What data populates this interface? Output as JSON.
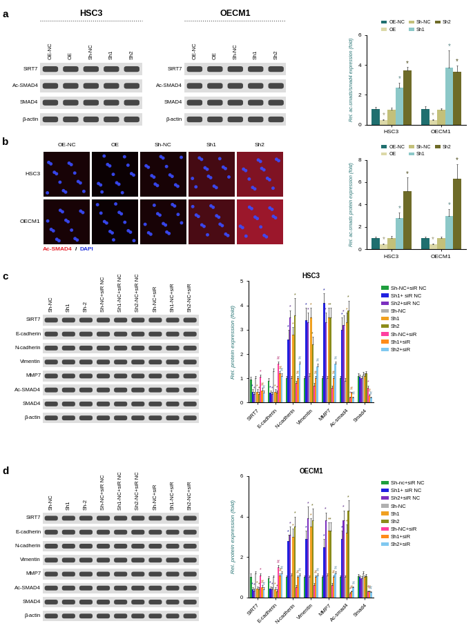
{
  "panel_labels": [
    "a",
    "b",
    "c",
    "d"
  ],
  "blots": [
    {
      "title": "HSC3",
      "lanes": [
        "OE-NC",
        "OE",
        "Sh-NC",
        "Sh1",
        "Sh2"
      ],
      "rows": [
        "SIRT7",
        "Ac-SMAD4",
        "SMAD4",
        "β-actin"
      ]
    },
    {
      "title": "OECM1",
      "lanes": [
        "OE-NC",
        "OE",
        "Sh-NC",
        "Sh1",
        "Sh2"
      ],
      "rows": [
        "SIRT7",
        "Ac-SMAD4",
        "SMAD4",
        "β-actin"
      ]
    },
    {
      "lanes": [
        "Sh-NC",
        "Sh1",
        "Sh-2",
        "Sh-NC+siR NC",
        "Sh1-NC+siR NC",
        "Sh2-NC+siR NC",
        "Sh-NC+siR",
        "Sh1-NC+siR",
        "Sh2-NC+siR"
      ],
      "rows": [
        "SIRT7",
        "E-cadherin",
        "N-cadherin",
        "Vimentin",
        "MMP7",
        "Ac-SMAD4",
        "SMAD4",
        "β-actin"
      ]
    },
    {
      "lanes": [
        "Sh-NC",
        "Sh1",
        "Sh-2",
        "Sh-NC+siR NC",
        "Sh1-NC+siR NC",
        "Sh2-NC+siR NC",
        "Sh-NC+siR",
        "Sh1-NC+siR",
        "Sh2-NC+siR"
      ],
      "rows": [
        "SIRT7",
        "E-cadherin",
        "N-cadherin",
        "Vimentin",
        "MMP7",
        "Ac-SMAD4",
        "SMAD4",
        "β-actin"
      ]
    }
  ],
  "images": {
    "rows": [
      "HSC3",
      "OECM1"
    ],
    "columns": [
      "OE-NC",
      "OE",
      "Sh-NC",
      "Sh1",
      "Sh2"
    ],
    "caption": [
      {
        "text": "Ac-SMAD4",
        "color": "#e8202a"
      },
      {
        "text": "/",
        "color": "#000000"
      },
      {
        "text": "DAPI",
        "color": "#2030e0"
      }
    ]
  },
  "chart_data": [
    {
      "type": "bar",
      "y_label": "Rel. ac-smads/smad4 expression (fold)",
      "categories": [
        "HSC3",
        "OECM1"
      ],
      "ylim": [
        0,
        6
      ],
      "yticks": [
        0,
        2,
        4,
        6
      ],
      "legend": "top",
      "series": [
        {
          "name": "OE-NC",
          "color": "#1f6f6f",
          "values": [
            1.05,
            1.05
          ],
          "errors": [
            0.15,
            0.2
          ],
          "marks": [
            null,
            null
          ]
        },
        {
          "name": "OE",
          "color": "#dcd9a8",
          "values": [
            0.3,
            0.3
          ],
          "errors": [
            0.05,
            0.05
          ],
          "marks": [
            "*",
            "*"
          ]
        },
        {
          "name": "Sh-NC",
          "color": "#c3c07a",
          "values": [
            1.0,
            1.0
          ],
          "errors": [
            0.15,
            0.1
          ],
          "marks": [
            null,
            null
          ]
        },
        {
          "name": "Sh1",
          "color": "#8cc8c8",
          "values": [
            2.5,
            3.8
          ],
          "errors": [
            0.3,
            1.2
          ],
          "marks": [
            "*",
            "*"
          ]
        },
        {
          "name": "Sh2",
          "color": "#6e6b28",
          "values": [
            3.65,
            3.55
          ],
          "errors": [
            0.2,
            0.4
          ],
          "marks": [
            "*",
            "*"
          ]
        }
      ]
    },
    {
      "type": "bar",
      "y_label": "Rel. ac-smads protein expression (fold)",
      "categories": [
        "HSC3",
        "OECM1"
      ],
      "ylim": [
        0,
        8
      ],
      "yticks": [
        0,
        2,
        4,
        6,
        8
      ],
      "legend": "top",
      "series": [
        {
          "name": "OE-NC",
          "color": "#1f6f6f",
          "values": [
            1.0,
            1.0
          ],
          "errors": [
            0.1,
            0.1
          ],
          "marks": [
            null,
            null
          ]
        },
        {
          "name": "OE",
          "color": "#dcd9a8",
          "values": [
            0.45,
            0.45
          ],
          "errors": [
            0.05,
            0.05
          ],
          "marks": [
            "*",
            "*"
          ]
        },
        {
          "name": "Sh-NC",
          "color": "#c3c07a",
          "values": [
            1.0,
            1.0
          ],
          "errors": [
            0.2,
            0.1
          ],
          "marks": [
            null,
            null
          ]
        },
        {
          "name": "Sh1",
          "color": "#8cc8c8",
          "values": [
            2.8,
            3.0
          ],
          "errors": [
            0.5,
            0.6
          ],
          "marks": [
            "*",
            "*"
          ]
        },
        {
          "name": "Sh2",
          "color": "#6e6b28",
          "values": [
            5.2,
            6.3
          ],
          "errors": [
            1.2,
            1.3
          ],
          "marks": [
            "*",
            "*"
          ]
        }
      ]
    },
    {
      "type": "bar",
      "title": "HSC3",
      "y_label": "Rel. protein expression (fold)",
      "categories": [
        "SIRT7",
        "E-cadherin",
        "N-cadherin",
        "Vimentin",
        "MMP7",
        "Ac-smad4",
        "Smad4"
      ],
      "ylim": [
        0,
        5
      ],
      "yticks": [
        0,
        1,
        2,
        3,
        4,
        5
      ],
      "legend": "right",
      "series": [
        {
          "name": "Sh-NC+siR NC",
          "color": "#1e9e3e",
          "values": [
            0.95,
            0.9,
            1.0,
            1.0,
            1.0,
            1.0,
            1.1
          ],
          "errors": [
            0.1,
            0.1,
            0.1,
            0.1,
            0.1,
            0.1,
            0.1
          ],
          "marks": [
            null,
            null,
            null,
            null,
            null,
            null,
            null
          ]
        },
        {
          "name": "Sh1+ siR NC",
          "color": "#2020e0",
          "values": [
            0.45,
            0.4,
            2.6,
            3.4,
            4.1,
            3.0,
            1.05
          ],
          "errors": [
            0.1,
            0.1,
            0.4,
            0.5,
            0.4,
            0.5,
            0.1
          ],
          "marks": [
            "*",
            "*",
            "*",
            "*",
            "*",
            "*",
            null
          ]
        },
        {
          "name": "Sh2+siR NC",
          "color": "#7b2fbf",
          "values": [
            0.35,
            0.35,
            3.5,
            3.3,
            3.3,
            3.2,
            1.0
          ],
          "errors": [
            0.1,
            0.1,
            0.3,
            0.4,
            0.4,
            0.4,
            0.1
          ],
          "marks": [
            "*",
            "*",
            "*",
            "*",
            "*",
            "*",
            null
          ]
        },
        {
          "name": "Sh-NC",
          "color": "#b0b0b0",
          "values": [
            1.0,
            1.3,
            1.0,
            1.1,
            1.0,
            0.9,
            1.15
          ],
          "errors": [
            0.1,
            0.1,
            0.1,
            0.1,
            0.1,
            0.1,
            0.1
          ],
          "marks": [
            null,
            null,
            null,
            null,
            null,
            null,
            null
          ]
        },
        {
          "name": "Sh1",
          "color": "#f0a020",
          "values": [
            0.45,
            0.45,
            2.8,
            3.5,
            3.5,
            3.3,
            1.1
          ],
          "errors": [
            0.1,
            0.1,
            0.3,
            0.4,
            0.4,
            0.4,
            0.1
          ],
          "marks": [
            "*",
            "*",
            "*",
            "*",
            "*",
            "*",
            null
          ]
        },
        {
          "name": "Sh2",
          "color": "#8c8c1a",
          "values": [
            0.35,
            0.4,
            3.6,
            2.4,
            3.5,
            3.8,
            1.2
          ],
          "errors": [
            0.1,
            0.1,
            0.7,
            0.3,
            0.4,
            0.4,
            0.1
          ],
          "marks": [
            "*",
            "*",
            "*",
            "*",
            "*",
            "*",
            null
          ]
        },
        {
          "name": "Sh-NC+siR",
          "color": "#ff3fa0",
          "values": [
            1.05,
            1.6,
            0.8,
            0.7,
            0.6,
            0.2,
            0.6
          ],
          "errors": [
            0.1,
            0.1,
            0.1,
            0.1,
            0.1,
            0.05,
            0.1
          ],
          "marks": [
            "*",
            "#",
            null,
            null,
            null,
            "*",
            "*"
          ]
        },
        {
          "name": "Sh1+siR",
          "color": "#ff8c1a",
          "values": [
            0.5,
            1.2,
            1.0,
            1.0,
            1.0,
            0.4,
            0.3
          ],
          "errors": [
            0.1,
            0.1,
            0.1,
            0.1,
            0.1,
            0.05,
            0.05
          ],
          "marks": [
            "#",
            "#",
            "#",
            "#",
            "#",
            "#",
            "#"
          ]
        },
        {
          "name": "Sh2+siR",
          "color": "#80c8f0",
          "values": [
            0.4,
            1.1,
            1.6,
            1.5,
            1.6,
            0.2,
            0.2
          ],
          "errors": [
            0.1,
            0.1,
            0.1,
            0.1,
            0.1,
            0.05,
            0.05
          ],
          "marks": [
            "#",
            "#",
            "#",
            "#",
            "#",
            "#",
            "#"
          ]
        }
      ]
    },
    {
      "type": "bar",
      "title": "OECM1",
      "y_label": "Rel. protein expression (fold)",
      "categories": [
        "SIRT7",
        "E-cadherin",
        "N-cadherin",
        "Vimentin",
        "MMP7",
        "Ac-smad4",
        "Smad4"
      ],
      "ylim": [
        0,
        6
      ],
      "yticks": [
        0,
        2,
        4,
        6
      ],
      "legend": "right",
      "series": [
        {
          "name": "Sh-nc+siR NC",
          "color": "#1e9e3e",
          "values": [
            1.0,
            0.95,
            1.0,
            1.0,
            1.0,
            1.0,
            1.05
          ],
          "errors": [
            0.2,
            0.1,
            0.1,
            0.1,
            0.1,
            0.1,
            0.1
          ],
          "marks": [
            null,
            null,
            null,
            null,
            null,
            null,
            null
          ]
        },
        {
          "name": "Sh1+ siR NC",
          "color": "#2020e0",
          "values": [
            0.4,
            0.45,
            2.8,
            2.9,
            2.5,
            2.9,
            1.0
          ],
          "errors": [
            0.1,
            0.1,
            0.3,
            0.4,
            0.4,
            0.4,
            0.1
          ],
          "marks": [
            "*",
            "*",
            "*",
            "*",
            "*",
            "*",
            null
          ]
        },
        {
          "name": "Sh2+siR NC",
          "color": "#7b2fbf",
          "values": [
            0.35,
            0.4,
            3.1,
            3.9,
            3.8,
            3.8,
            0.95
          ],
          "errors": [
            0.1,
            0.1,
            0.4,
            0.6,
            0.4,
            0.5,
            0.1
          ],
          "marks": [
            "*",
            "*",
            "*",
            "*",
            "*",
            "*",
            null
          ]
        },
        {
          "name": "Sh-NC",
          "color": "#b0b0b0",
          "values": [
            1.2,
            1.0,
            1.1,
            1.0,
            1.1,
            1.0,
            1.2
          ],
          "errors": [
            0.1,
            0.1,
            0.1,
            0.1,
            0.1,
            0.1,
            0.1
          ],
          "marks": [
            null,
            null,
            null,
            null,
            null,
            null,
            null
          ]
        },
        {
          "name": "Sh1",
          "color": "#f0a020",
          "values": [
            0.45,
            0.4,
            3.0,
            3.5,
            3.3,
            3.2,
            1.0
          ],
          "errors": [
            0.1,
            0.1,
            0.4,
            0.4,
            0.4,
            0.4,
            0.1
          ],
          "marks": [
            "*",
            "*",
            "*",
            "*",
            "*",
            "*",
            null
          ]
        },
        {
          "name": "Sh2",
          "color": "#8c8c1a",
          "values": [
            0.4,
            0.3,
            3.5,
            3.8,
            3.3,
            4.3,
            1.05
          ],
          "errors": [
            0.1,
            0.1,
            0.5,
            0.6,
            0.4,
            0.5,
            0.1
          ],
          "marks": [
            "*",
            "*",
            "*",
            "*",
            "*",
            "*",
            null
          ]
        },
        {
          "name": "Sh-NC+siR",
          "color": "#ff3fa0",
          "values": [
            1.1,
            1.5,
            0.5,
            0.6,
            0.6,
            0.2,
            0.3
          ],
          "errors": [
            0.1,
            0.1,
            0.1,
            0.1,
            0.1,
            0.05,
            0.05
          ],
          "marks": [
            "*",
            "#",
            null,
            null,
            null,
            "*",
            "*"
          ]
        },
        {
          "name": "Sh1+siR",
          "color": "#ff8c1a",
          "values": [
            0.5,
            1.1,
            1.0,
            1.0,
            1.0,
            0.3,
            0.3
          ],
          "errors": [
            0.1,
            0.1,
            0.1,
            0.1,
            0.1,
            0.05,
            0.05
          ],
          "marks": [
            "#",
            "#",
            "#",
            "#",
            "#",
            "#",
            "#"
          ]
        },
        {
          "name": "Sh2+siR",
          "color": "#80c8f0",
          "values": [
            0.4,
            1.2,
            1.1,
            1.1,
            1.2,
            0.5,
            0.25
          ],
          "errors": [
            0.1,
            0.1,
            0.1,
            0.1,
            0.1,
            0.05,
            0.05
          ],
          "marks": [
            "#",
            "#",
            "#",
            "#",
            "#",
            "#",
            "#"
          ]
        }
      ]
    }
  ]
}
